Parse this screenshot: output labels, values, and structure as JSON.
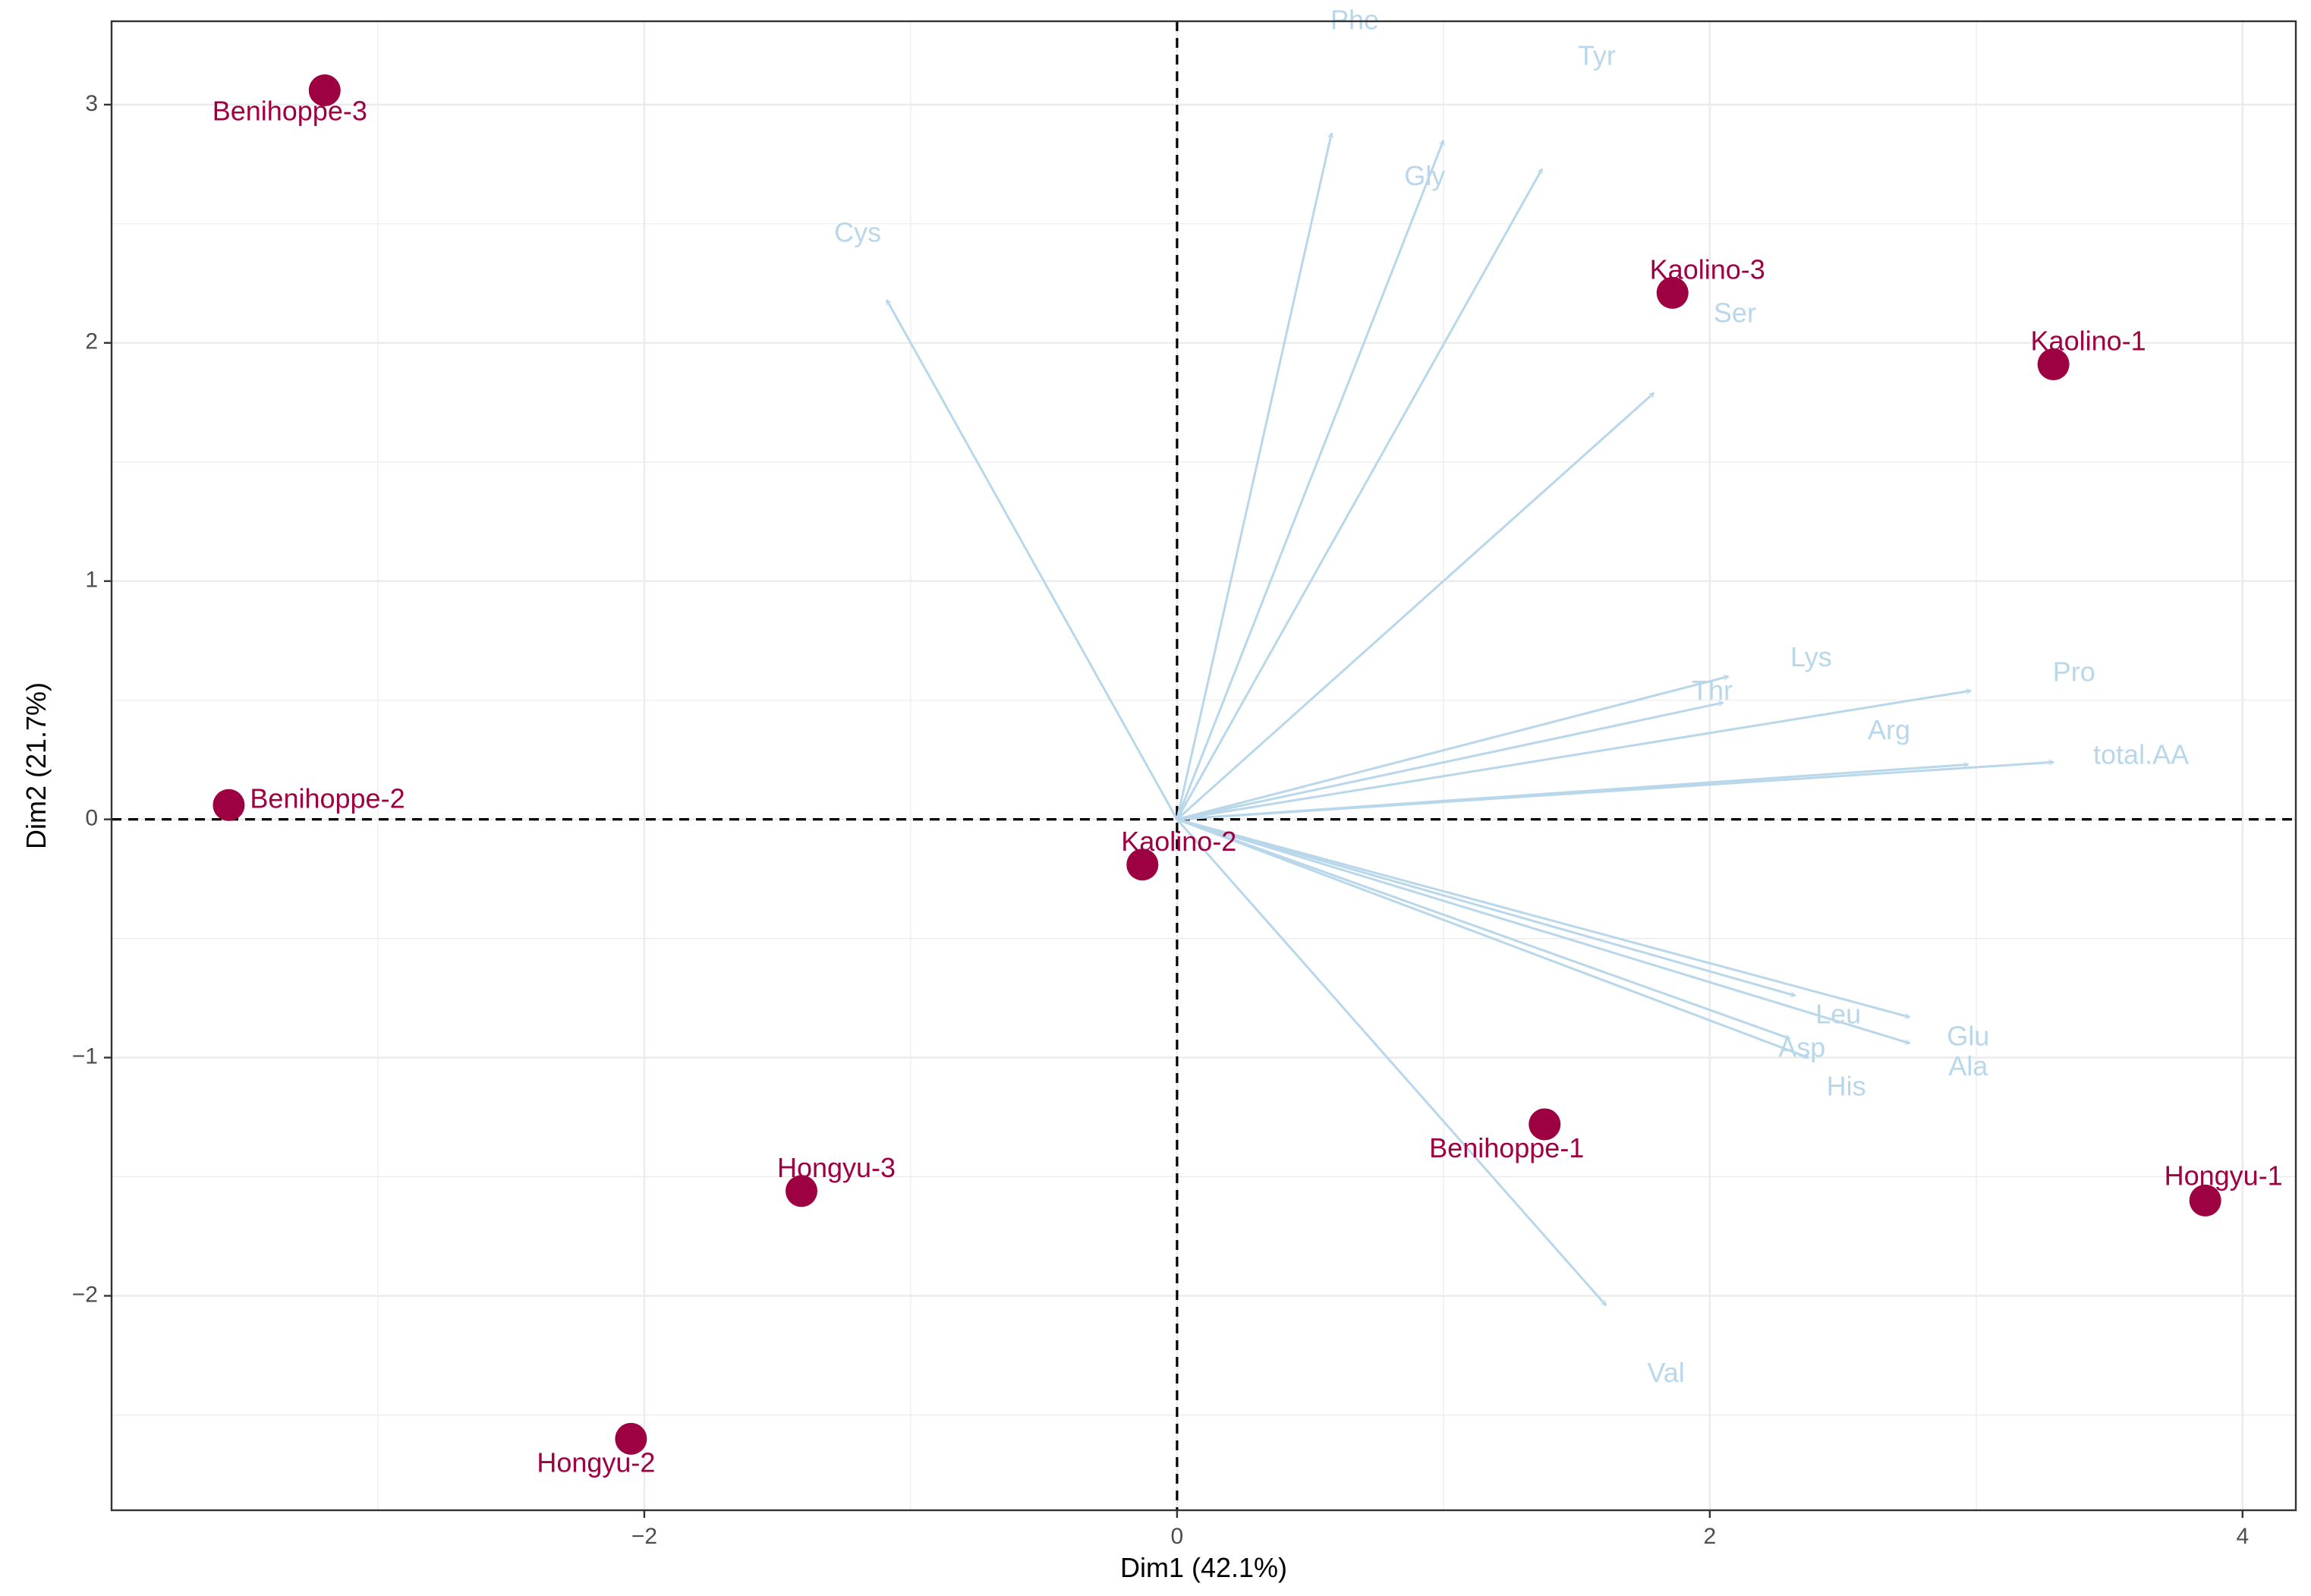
{
  "chart_data": {
    "type": "scatter",
    "subtype": "pca-biplot",
    "title": "",
    "xlabel": "Dim1 (42.1%)",
    "ylabel": "Dim2 (21.7%)",
    "xlim": [
      -4.0,
      4.2
    ],
    "ylim": [
      -2.9,
      3.35
    ],
    "x_ticks": [
      -2,
      0,
      2,
      4
    ],
    "x_tick_labels": [
      "−2",
      "0",
      "2",
      "4"
    ],
    "y_ticks": [
      -2,
      -1,
      0,
      1,
      2,
      3
    ],
    "y_tick_labels": [
      "−2",
      "−1",
      "0",
      "1",
      "2",
      "3"
    ],
    "grid": true,
    "reference_lines": {
      "x": 0,
      "y": 0,
      "style": "dashed"
    },
    "colors": {
      "individuals": "#9e0142",
      "variables": "#b9d7ea",
      "grid": "#ebebeb",
      "axis_text": "#4d4d4d"
    },
    "individuals": [
      {
        "name": "Benihoppe-3",
        "x": -3.2,
        "y": 3.06
      },
      {
        "name": "Benihoppe-2",
        "x": -3.56,
        "y": 0.06
      },
      {
        "name": "Benihoppe-1",
        "x": 1.38,
        "y": -1.28
      },
      {
        "name": "Kaolino-3",
        "x": 1.86,
        "y": 2.21
      },
      {
        "name": "Kaolino-1",
        "x": 3.29,
        "y": 1.91
      },
      {
        "name": "Kaolino-2",
        "x": -0.13,
        "y": -0.19
      },
      {
        "name": "Hongyu-3",
        "x": -1.41,
        "y": -1.56
      },
      {
        "name": "Hongyu-2",
        "x": -2.05,
        "y": -2.6
      },
      {
        "name": "Hongyu-1",
        "x": 3.86,
        "y": -1.6
      }
    ],
    "variables": [
      {
        "name": "Phe",
        "x": 0.58,
        "y": 2.88
      },
      {
        "name": "Gly",
        "x": 1.0,
        "y": 2.85
      },
      {
        "name": "Tyr",
        "x": 1.37,
        "y": 2.73
      },
      {
        "name": "Cys",
        "x": -1.09,
        "y": 2.18
      },
      {
        "name": "Ser",
        "x": 1.79,
        "y": 1.79
      },
      {
        "name": "Lys",
        "x": 2.07,
        "y": 0.6
      },
      {
        "name": "Thr",
        "x": 2.05,
        "y": 0.49
      },
      {
        "name": "Pro",
        "x": 2.98,
        "y": 0.54
      },
      {
        "name": "total.AA",
        "x": 3.29,
        "y": 0.24
      },
      {
        "name": "Arg",
        "x": 2.97,
        "y": 0.23
      },
      {
        "name": "Leu",
        "x": 2.32,
        "y": -0.74
      },
      {
        "name": "Glu",
        "x": 2.75,
        "y": -0.83
      },
      {
        "name": "Asp",
        "x": 2.3,
        "y": -0.92
      },
      {
        "name": "Ala",
        "x": 2.75,
        "y": -0.94
      },
      {
        "name": "His",
        "x": 2.37,
        "y": -1.0
      },
      {
        "name": "Val",
        "x": 1.61,
        "y": -2.04
      }
    ]
  }
}
